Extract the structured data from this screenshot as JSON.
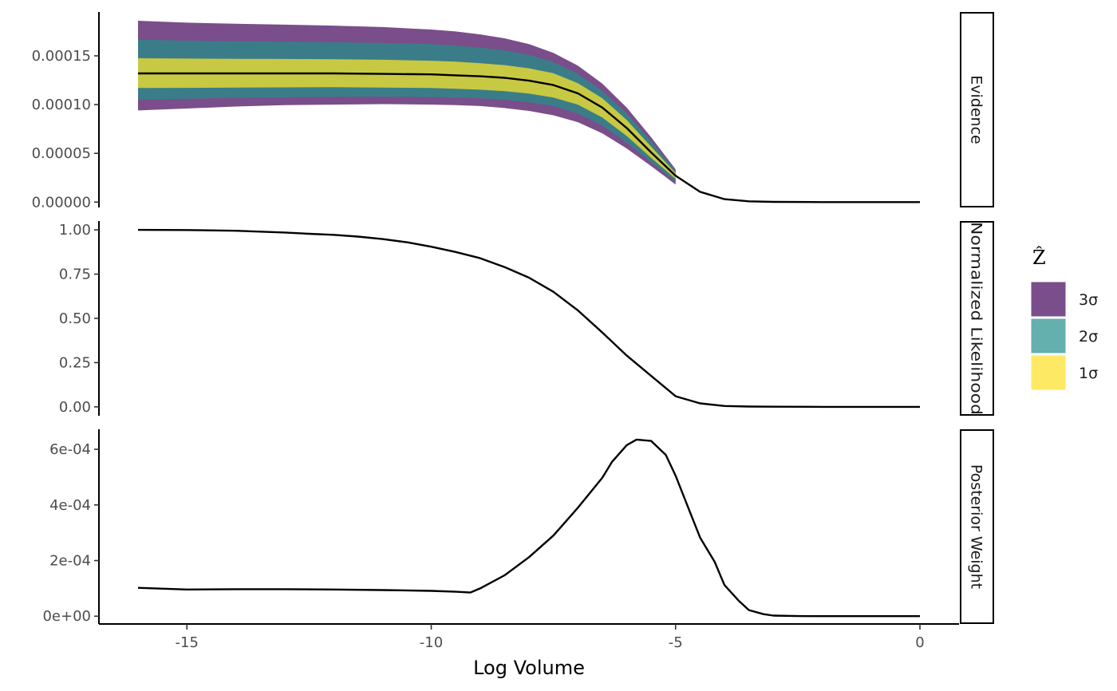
{
  "chart_data": {
    "type": "line",
    "xlabel": "Log Volume",
    "xlim": [
      -16.8,
      0.8
    ],
    "x_ticks": [
      -15,
      -10,
      -5,
      0
    ],
    "x_tick_labels": [
      "-15",
      "-10",
      "-5",
      "0"
    ],
    "legend": {
      "title": "Ẑ",
      "placement": "right",
      "entries": [
        {
          "label": "3σ",
          "color": "#7a4e8a"
        },
        {
          "label": "2σ",
          "color": "#63b0ae"
        },
        {
          "label": "1σ",
          "color": "#fde963"
        }
      ]
    },
    "panels": [
      {
        "strip": "Evidence",
        "ylim": [
          -5.5e-06,
          0.000195
        ],
        "y_ticks": [
          0,
          5e-05,
          0.0001,
          0.00015
        ],
        "y_tick_labels": [
          "0.00000",
          "0.00005",
          "0.00010",
          "0.00015"
        ],
        "line": {
          "x": [
            -16,
            -15,
            -14,
            -13,
            -12,
            -11,
            -10,
            -9.5,
            -9,
            -8.5,
            -8,
            -7.5,
            -7,
            -6.5,
            -6,
            -5.5,
            -5,
            -4.5,
            -4,
            -3.5,
            -3,
            -2,
            -1,
            0
          ],
          "y": [
            0.000132,
            0.000132,
            0.000132,
            0.000132,
            0.000132,
            0.0001315,
            0.000131,
            0.00013,
            0.000129,
            0.0001275,
            0.0001245,
            0.00012,
            0.0001115,
            9.7e-05,
            7.6e-05,
            5.1e-05,
            2.7e-05,
            1.05e-05,
            3e-06,
            8e-07,
            2e-07,
            2e-08,
            0,
            0
          ]
        },
        "band_x": [
          -16,
          -15,
          -14,
          -13,
          -12,
          -11,
          -10,
          -9.5,
          -9,
          -8.5,
          -8,
          -7.5,
          -7,
          -6.5,
          -6,
          -5.5,
          -5
        ],
        "bands": [
          {
            "label": "3σ",
            "color": "#7a4e8a",
            "lower": [
              9.4e-05,
              9.6e-05,
              9.8e-05,
              9.95e-05,
              0.0001,
              0.0001005,
              0.0001,
              9.95e-05,
              9.85e-05,
              9.65e-05,
              9.35e-05,
              8.9e-05,
              8.2e-05,
              7.05e-05,
              5.5e-05,
              3.7e-05,
              1.8e-05
            ],
            "upper": [
              0.000186,
              0.000184,
              0.000183,
              0.000182,
              0.000181,
              0.0001795,
              0.000177,
              0.000175,
              0.000172,
              0.000168,
              0.000162,
              0.000153,
              0.00014,
              0.0001215,
              9.7e-05,
              6.65e-05,
              3.35e-05
            ]
          },
          {
            "label": "2σ",
            "color": "#3a7d89",
            "lower": [
              0.000105,
              0.000106,
              0.000107,
              0.0001075,
              0.000108,
              0.0001082,
              0.0001078,
              0.0001073,
              0.0001065,
              0.000105,
              0.0001025,
              9.85e-05,
              9.1e-05,
              7.85e-05,
              6.1e-05,
              4.1e-05,
              2.1e-05
            ],
            "upper": [
              0.0001665,
              0.0001655,
              0.000165,
              0.0001645,
              0.000164,
              0.0001632,
              0.000162,
              0.0001605,
              0.0001585,
              0.0001555,
              0.000151,
              0.0001435,
              0.0001315,
              0.000114,
              9.1e-05,
              6.25e-05,
              3.2e-05
            ]
          },
          {
            "label": "1σ",
            "color": "#c8c942",
            "lower": [
              0.000117,
              0.0001172,
              0.0001175,
              0.0001177,
              0.0001178,
              0.0001175,
              0.000117,
              0.0001163,
              0.0001153,
              0.0001138,
              0.0001113,
              0.0001073,
              0.0001,
              8.68e-05,
              6.78e-05,
              4.55e-05,
              2.38e-05
            ],
            "upper": [
              0.0001475,
              0.0001472,
              0.000147,
              0.0001468,
              0.0001465,
              0.000146,
              0.000145,
              0.000144,
              0.0001425,
              0.0001405,
              0.0001372,
              0.0001322,
              0.000122,
              0.0001065,
              8.42e-05,
              5.68e-05,
              2.98e-05
            ]
          }
        ]
      },
      {
        "strip": "Normalized Likelihood",
        "ylim": [
          -0.05,
          1.05
        ],
        "y_ticks": [
          0,
          0.25,
          0.5,
          0.75,
          1
        ],
        "y_tick_labels": [
          "0.00",
          "0.25",
          "0.50",
          "0.75",
          "1.00"
        ],
        "line": {
          "x": [
            -16,
            -15,
            -14,
            -13.5,
            -13,
            -12.5,
            -12,
            -11.5,
            -11,
            -10.5,
            -10,
            -9.5,
            -9,
            -8.5,
            -8,
            -7.5,
            -7,
            -6.5,
            -6,
            -5.5,
            -5,
            -4.5,
            -4,
            -3.5,
            -3,
            -2,
            -1,
            0
          ],
          "y": [
            1.0,
            0.999,
            0.995,
            0.99,
            0.985,
            0.978,
            0.972,
            0.962,
            0.948,
            0.93,
            0.905,
            0.875,
            0.84,
            0.79,
            0.73,
            0.65,
            0.545,
            0.42,
            0.29,
            0.175,
            0.06,
            0.02,
            0.005,
            0.002,
            0.001,
            0,
            0,
            0
          ]
        }
      },
      {
        "strip": "Posterior Weight",
        "ylim": [
          -2.8e-05,
          0.000672
        ],
        "y_ticks": [
          0,
          0.0002,
          0.0004,
          0.0006
        ],
        "y_tick_labels": [
          "0e+00",
          "2e-04",
          "4e-04",
          "6e-04"
        ],
        "line": {
          "x": [
            -16,
            -15,
            -14,
            -13,
            -12,
            -11,
            -10,
            -9.5,
            -9.2,
            -9,
            -8.5,
            -8,
            -7.5,
            -7,
            -6.5,
            -6.3,
            -6,
            -5.8,
            -5.5,
            -5.2,
            -5,
            -4.7,
            -4.5,
            -4.2,
            -4,
            -3.7,
            -3.5,
            -3.2,
            -3,
            -2.5,
            -2,
            -1,
            0
          ],
          "y": [
            0.000102,
            9.6e-05,
            9.7e-05,
            9.7e-05,
            9.6e-05,
            9.4e-05,
            9.1e-05,
            8.8e-05,
            8.5e-05,
            0.0001,
            0.000147,
            0.000212,
            0.00029,
            0.00039,
            0.000498,
            0.000555,
            0.000615,
            0.000635,
            0.00063,
            0.00058,
            0.000505,
            0.000372,
            0.000283,
            0.000195,
            0.000112,
            5.4e-05,
            2.2e-05,
            7.2e-06,
            2e-06,
            5e-07,
            0,
            0,
            0
          ]
        }
      }
    ]
  }
}
